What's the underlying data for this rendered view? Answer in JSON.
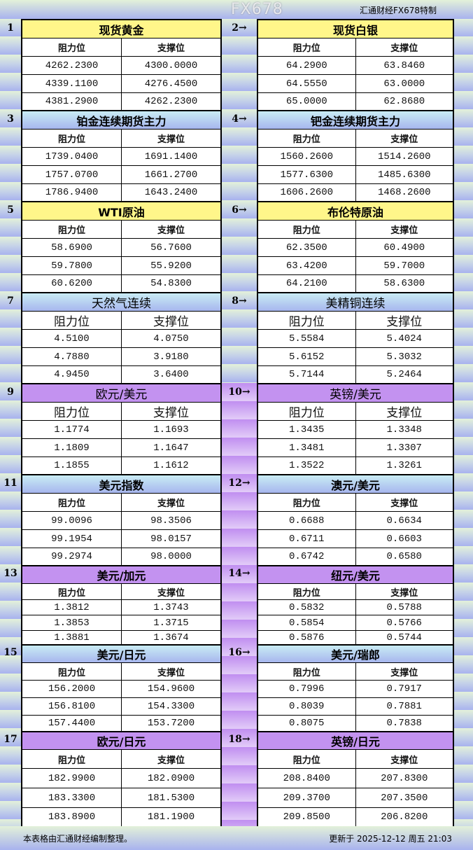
{
  "brand": "汇通财经FX678特制",
  "col_headers": {
    "resistance": "阻力位",
    "support": "支撑位"
  },
  "colors": {
    "yellow": "#fff68a",
    "blue": "#a7b6ee",
    "purple": "#c392f0"
  },
  "sections": [
    {
      "left": {
        "num": "1",
        "title": "现货黄金",
        "color": "yellow",
        "rows": [
          [
            "4262.2300",
            "4300.0000"
          ],
          [
            "4339.1100",
            "4276.4500"
          ],
          [
            "4381.2900",
            "4262.2300"
          ]
        ]
      },
      "right": {
        "num": "2→",
        "title": "现货白银",
        "color": "yellow",
        "rows": [
          [
            "64.2900",
            "63.8460"
          ],
          [
            "64.5550",
            "63.0000"
          ],
          [
            "65.0000",
            "62.8680"
          ]
        ]
      }
    },
    {
      "left": {
        "num": "3",
        "title": "铂金连续期货主力",
        "color": "blue",
        "rows": [
          [
            "1739.0400",
            "1691.1400"
          ],
          [
            "1757.0700",
            "1661.2700"
          ],
          [
            "1786.9400",
            "1643.2400"
          ]
        ]
      },
      "right": {
        "num": "4→",
        "title": "钯金连续期货主力",
        "color": "blue",
        "rows": [
          [
            "1560.2600",
            "1514.2600"
          ],
          [
            "1577.6300",
            "1485.6300"
          ],
          [
            "1606.2600",
            "1468.2600"
          ]
        ]
      }
    },
    {
      "left": {
        "num": "5",
        "title": "WTI原油",
        "color": "yellow",
        "rows": [
          [
            "58.6900",
            "56.7600"
          ],
          [
            "59.7800",
            "55.9200"
          ],
          [
            "60.6200",
            "54.8300"
          ]
        ]
      },
      "right": {
        "num": "6→",
        "title": "布伦特原油",
        "color": "yellow",
        "rows": [
          [
            "62.3500",
            "60.4900"
          ],
          [
            "63.4200",
            "59.7000"
          ],
          [
            "64.2100",
            "58.6300"
          ]
        ]
      }
    },
    {
      "left": {
        "num": "7",
        "title": "天然气连续",
        "color": "blue",
        "rows": [
          [
            "4.5100",
            "4.0750"
          ],
          [
            "4.7880",
            "3.9180"
          ],
          [
            "4.9450",
            "3.6400"
          ]
        ]
      },
      "right": {
        "num": "8→",
        "title": "美精铜连续",
        "color": "blue",
        "rows": [
          [
            "5.5584",
            "5.4024"
          ],
          [
            "5.6152",
            "5.3032"
          ],
          [
            "5.7144",
            "5.2464"
          ]
        ]
      }
    },
    {
      "left": {
        "num": "9",
        "title": "欧元/美元",
        "color": "purple",
        "rows": [
          [
            "1.1774",
            "1.1693"
          ],
          [
            "1.1809",
            "1.1647"
          ],
          [
            "1.1855",
            "1.1612"
          ]
        ]
      },
      "right": {
        "num": "10→",
        "title": "英镑/美元",
        "color": "purple",
        "rows": [
          [
            "1.3435",
            "1.3348"
          ],
          [
            "1.3481",
            "1.3307"
          ],
          [
            "1.3522",
            "1.3261"
          ]
        ]
      }
    },
    {
      "left": {
        "num": "11",
        "title": "美元指数",
        "color": "blue",
        "rows": [
          [
            "99.0096",
            "98.3506"
          ],
          [
            "99.1954",
            "98.0157"
          ],
          [
            "99.2974",
            "98.0000"
          ]
        ]
      },
      "right": {
        "num": "12→",
        "title": "澳元/美元",
        "color": "blue",
        "rows": [
          [
            "0.6688",
            "0.6634"
          ],
          [
            "0.6711",
            "0.6603"
          ],
          [
            "0.6742",
            "0.6580"
          ]
        ]
      }
    },
    {
      "left": {
        "num": "13",
        "title": "美元/加元",
        "color": "purple",
        "rows": [
          [
            "1.3812",
            "1.3743"
          ],
          [
            "1.3853",
            "1.3715"
          ],
          [
            "1.3881",
            "1.3674"
          ]
        ]
      },
      "right": {
        "num": "14→",
        "title": "纽元/美元",
        "color": "purple",
        "rows": [
          [
            "0.5832",
            "0.5788"
          ],
          [
            "0.5854",
            "0.5766"
          ],
          [
            "0.5876",
            "0.5744"
          ]
        ]
      }
    },
    {
      "left": {
        "num": "15",
        "title": "美元/日元",
        "color": "blue",
        "rows": [
          [
            "156.2000",
            "154.9600"
          ],
          [
            "156.8100",
            "154.3300"
          ],
          [
            "157.4400",
            "153.7200"
          ]
        ]
      },
      "right": {
        "num": "16→",
        "title": "美元/瑞郎",
        "color": "blue",
        "rows": [
          [
            "0.7996",
            "0.7917"
          ],
          [
            "0.8039",
            "0.7881"
          ],
          [
            "0.8075",
            "0.7838"
          ]
        ]
      }
    },
    {
      "left": {
        "num": "17",
        "title": "欧元/日元",
        "color": "purple",
        "rows": [
          [
            "182.9900",
            "182.0900"
          ],
          [
            "183.3300",
            "181.5300"
          ],
          [
            "183.8900",
            "181.1900"
          ]
        ]
      },
      "right": {
        "num": "18→",
        "title": "英镑/日元",
        "color": "purple",
        "rows": [
          [
            "208.8400",
            "207.8300"
          ],
          [
            "209.3700",
            "207.3500"
          ],
          [
            "209.8500",
            "206.8200"
          ]
        ]
      }
    }
  ],
  "footer": {
    "note": "本表格由汇通财经编制整理。",
    "updated": "更新于 2025-12-12 周五 21:03"
  },
  "watermark": "FX678"
}
